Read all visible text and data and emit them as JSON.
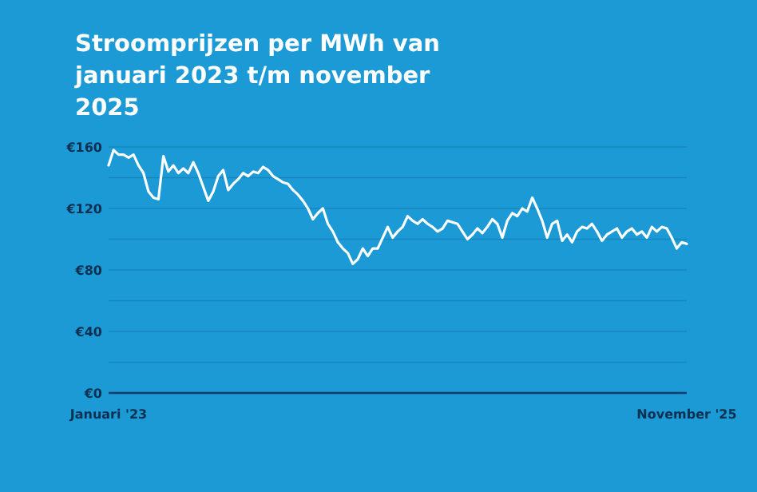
{
  "chart_data": {
    "type": "line",
    "title": "Stroomprijzen per MWh van januari 2023 t/m november 2025",
    "categories": [
      "Januari '23",
      null,
      null,
      null,
      null,
      null,
      null,
      null,
      null,
      null,
      null,
      null,
      null,
      null,
      null,
      null,
      null,
      null,
      null,
      null,
      null,
      null,
      null,
      null,
      null,
      null,
      null,
      null,
      null,
      null,
      null,
      null,
      null,
      null,
      null,
      null,
      null,
      null,
      null,
      null,
      null,
      null,
      null,
      null,
      null,
      null,
      null,
      null,
      null,
      null,
      null,
      null,
      null,
      null,
      null,
      null,
      null,
      null,
      null,
      null,
      null,
      null,
      null,
      null,
      null,
      null,
      null,
      null,
      null,
      null,
      null,
      null,
      null,
      null,
      null,
      null,
      null,
      null,
      null,
      null,
      null,
      null,
      null,
      null,
      null,
      null,
      null,
      null,
      null,
      null,
      null,
      null,
      null,
      null,
      null,
      null,
      null,
      null,
      null,
      null,
      null,
      null,
      null,
      null,
      null,
      null,
      null,
      null,
      null,
      null,
      null,
      null,
      null,
      null,
      null,
      null,
      "November '25"
    ],
    "series": [
      {
        "color": "#ffffff",
        "values": [
          148,
          158,
          155,
          155,
          153,
          155,
          148,
          143,
          131,
          127,
          126,
          154,
          144,
          148,
          143,
          146,
          143,
          150,
          143,
          134,
          125,
          131,
          141,
          145,
          132,
          136,
          139,
          143,
          141,
          144,
          143,
          147,
          145,
          141,
          139,
          137,
          136,
          132,
          129,
          125,
          120,
          113,
          117,
          120,
          110,
          105,
          98,
          94,
          91,
          84,
          87,
          94,
          89,
          94,
          94,
          101,
          108,
          101,
          105,
          108,
          115,
          112,
          110,
          113,
          110,
          108,
          105,
          107,
          112,
          111,
          110,
          105,
          100,
          103,
          107,
          104,
          108,
          113,
          110,
          101,
          112,
          117,
          115,
          120,
          118,
          127,
          120,
          112,
          101,
          110,
          112,
          99,
          103,
          98,
          105,
          108,
          107,
          110,
          105,
          99,
          103,
          105,
          107,
          101,
          105,
          107,
          103,
          105,
          101,
          108,
          105,
          108,
          107,
          101,
          94,
          98,
          97
        ]
      }
    ],
    "ylim": [
      0,
      160
    ],
    "yticks": [
      {
        "value": 0,
        "label": "€0"
      },
      {
        "value": 20,
        "label": null
      },
      {
        "value": 40,
        "label": "€40"
      },
      {
        "value": 60,
        "label": null
      },
      {
        "value": 80,
        "label": "€80"
      },
      {
        "value": 100,
        "label": null
      },
      {
        "value": 120,
        "label": "€120"
      },
      {
        "value": 140,
        "label": null
      },
      {
        "value": 160,
        "label": "€160"
      }
    ],
    "grid": "y",
    "marker": "none",
    "line_style": "solid"
  }
}
